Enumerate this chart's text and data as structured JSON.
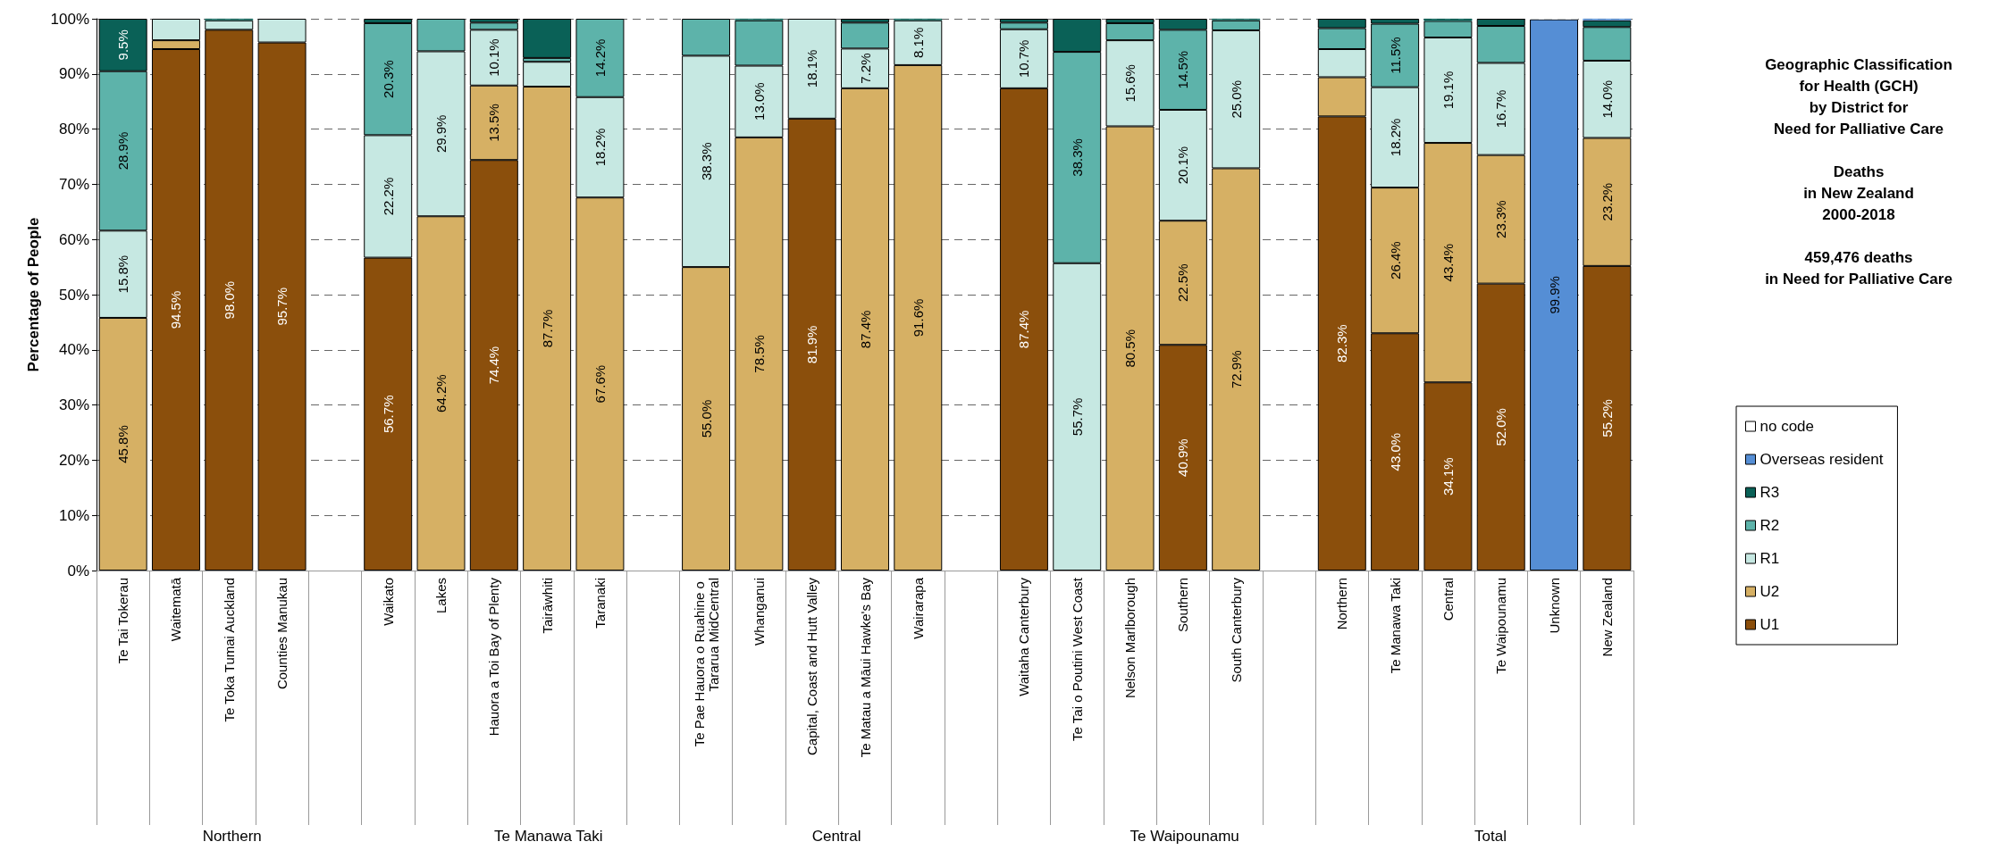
{
  "chart_data": {
    "type": "bar",
    "stacked": true,
    "title": "Geographic Classification\nfor Health (GCH)\nby District for\nNeed for Palliative Care",
    "subtitle": "Deaths\nin New Zealand\n2000-2018\n\n459,476 deaths\nin Need for Palliative Care",
    "ylabel": "Percentage of People",
    "categories": [
      "Te Tai Tokerau",
      "Waitematā",
      "Te Toka Tumai Auckland",
      "Counties Manukau",
      null,
      "Waikato",
      "Lakes",
      "Hauora a Toi Bay of Plenty",
      "Tairāwhiti",
      "Taranaki",
      null,
      "Te Pae Hauora o Ruahine o Tararua MidCentral",
      "Whanganui",
      "Capital, Coast and Hutt Valley",
      "Te Matau a Māui Hawke's Bay",
      "Wairarapa",
      null,
      "Waitaha Canterbury",
      "Te Tai o Poutini West Coast",
      "Nelson Marlborough",
      "Southern",
      "South Canterbury",
      null,
      "Northern",
      "Te Manawa Taki",
      "Central",
      "Te Waipounamu",
      "Unknown",
      "New Zealand"
    ],
    "series": [
      {
        "name": "U1",
        "color": "#8b4f0c",
        "values": [
          0,
          94.5,
          98.0,
          95.7,
          null,
          56.7,
          0,
          74.4,
          0,
          0,
          null,
          0,
          0,
          81.9,
          0,
          0,
          null,
          87.4,
          0,
          0,
          40.9,
          0,
          null,
          82.3,
          43.0,
          34.1,
          52.0,
          0,
          55.2
        ],
        "value_labels": [
          null,
          "94.5%",
          "98.0%",
          "95.7%",
          null,
          "56.7%",
          null,
          "74.4%",
          null,
          null,
          null,
          null,
          null,
          "81.9%",
          null,
          null,
          null,
          "87.4%",
          null,
          null,
          "40.9%",
          null,
          null,
          "82.3%",
          "43.0%",
          "34.1%",
          "52.0%",
          null,
          "55.2%"
        ]
      },
      {
        "name": "U2",
        "color": "#d6b064",
        "values": [
          45.8,
          1.6,
          0,
          0,
          null,
          0,
          64.2,
          13.5,
          87.7,
          67.6,
          null,
          55.0,
          78.5,
          0,
          87.4,
          91.6,
          null,
          0,
          0,
          80.5,
          22.5,
          72.9,
          null,
          7.1,
          26.4,
          43.4,
          23.3,
          0,
          23.2
        ],
        "value_labels": [
          "45.8%",
          null,
          null,
          null,
          null,
          null,
          "64.2%",
          "13.5%",
          "87.7%",
          "67.6%",
          null,
          "55.0%",
          "78.5%",
          null,
          "87.4%",
          "91.6%",
          null,
          null,
          null,
          "80.5%",
          "22.5%",
          "72.9%",
          null,
          null,
          "26.4%",
          "43.4%",
          "23.3%",
          null,
          "23.2%"
        ]
      },
      {
        "name": "R1",
        "color": "#c6e8e2",
        "values": [
          15.8,
          3.9,
          1.7,
          4.3,
          null,
          22.2,
          29.9,
          10.1,
          4.5,
          18.2,
          null,
          38.3,
          13.0,
          18.1,
          7.2,
          8.1,
          null,
          10.7,
          55.7,
          15.6,
          20.1,
          25.0,
          null,
          5.1,
          18.2,
          19.1,
          16.7,
          0,
          14.0
        ],
        "value_labels": [
          "15.8%",
          null,
          null,
          null,
          null,
          "22.2%",
          "29.9%",
          "10.1%",
          null,
          "18.2%",
          null,
          "38.3%",
          "13.0%",
          "18.1%",
          "7.2%",
          "8.1%",
          null,
          "10.7%",
          "55.7%",
          "15.6%",
          "20.1%",
          "25.0%",
          null,
          null,
          "18.2%",
          "19.1%",
          "16.7%",
          null,
          "14.0%"
        ]
      },
      {
        "name": "R2",
        "color": "#5db3aa",
        "values": [
          28.9,
          0,
          0,
          0,
          null,
          20.3,
          5.9,
          1.3,
          0.7,
          14.2,
          null,
          6.7,
          8.2,
          0,
          4.7,
          0,
          null,
          1.2,
          38.3,
          3.1,
          14.5,
          1.8,
          null,
          3.8,
          11.5,
          3.0,
          6.7,
          0,
          6.1
        ],
        "value_labels": [
          "28.9%",
          null,
          null,
          null,
          null,
          "20.3%",
          null,
          null,
          null,
          "14.2%",
          null,
          null,
          null,
          null,
          null,
          null,
          null,
          null,
          "38.3%",
          null,
          "14.5%",
          null,
          null,
          null,
          "11.5%",
          null,
          null,
          null,
          null
        ]
      },
      {
        "name": "R3",
        "color": "#0a6157",
        "values": [
          9.5,
          0,
          0.3,
          0,
          null,
          0.8,
          0,
          0.7,
          7.1,
          0,
          null,
          0,
          0.3,
          0,
          0.7,
          0.3,
          null,
          0.7,
          6.0,
          0.8,
          2.0,
          0.3,
          null,
          1.7,
          0.9,
          0.4,
          1.3,
          0,
          1.2
        ],
        "value_labels": [
          "9.5%",
          null,
          null,
          null,
          null,
          null,
          null,
          null,
          null,
          null,
          null,
          null,
          null,
          null,
          null,
          null,
          null,
          null,
          null,
          null,
          null,
          null,
          null,
          null,
          null,
          null,
          null,
          null,
          null
        ]
      },
      {
        "name": "Overseas resident",
        "color": "#558ed5",
        "values": [
          0,
          0,
          0,
          0,
          null,
          0,
          0,
          0,
          0,
          0,
          null,
          0,
          0,
          0,
          0,
          0,
          null,
          0,
          0,
          0,
          0,
          0,
          null,
          0,
          0,
          0,
          0,
          99.9,
          0.3
        ],
        "value_labels": [
          null,
          null,
          null,
          null,
          null,
          null,
          null,
          null,
          null,
          null,
          null,
          null,
          null,
          null,
          null,
          null,
          null,
          null,
          null,
          null,
          null,
          null,
          null,
          null,
          null,
          null,
          null,
          "99.9%",
          null
        ]
      },
      {
        "name": "no code",
        "color": "#ffffff",
        "values": [
          0,
          0,
          0,
          0,
          null,
          0,
          0,
          0,
          0,
          0,
          null,
          0,
          0,
          0,
          0,
          0,
          null,
          0,
          0,
          0,
          0,
          0,
          null,
          0,
          0,
          0,
          0,
          0.1,
          0
        ]
      }
    ],
    "annotations": [
      "Northern",
      "Te Manawa Taki",
      "Central",
      "Te Waipounamu",
      "Total"
    ],
    "ylim": [
      0,
      100
    ],
    "yticks": [
      {
        "value": 0,
        "label": "0%"
      },
      {
        "value": 10,
        "label": "10%"
      },
      {
        "value": 20,
        "label": "20%"
      },
      {
        "value": 30,
        "label": "30%"
      },
      {
        "value": 40,
        "label": "40%"
      },
      {
        "value": 50,
        "label": "50%"
      },
      {
        "value": 60,
        "label": "60%"
      },
      {
        "value": 70,
        "label": "70%"
      },
      {
        "value": 80,
        "label": "80%"
      },
      {
        "value": 90,
        "label": "90%"
      },
      {
        "value": 100,
        "label": "100%"
      }
    ],
    "grid": "y",
    "legend": "right"
  }
}
